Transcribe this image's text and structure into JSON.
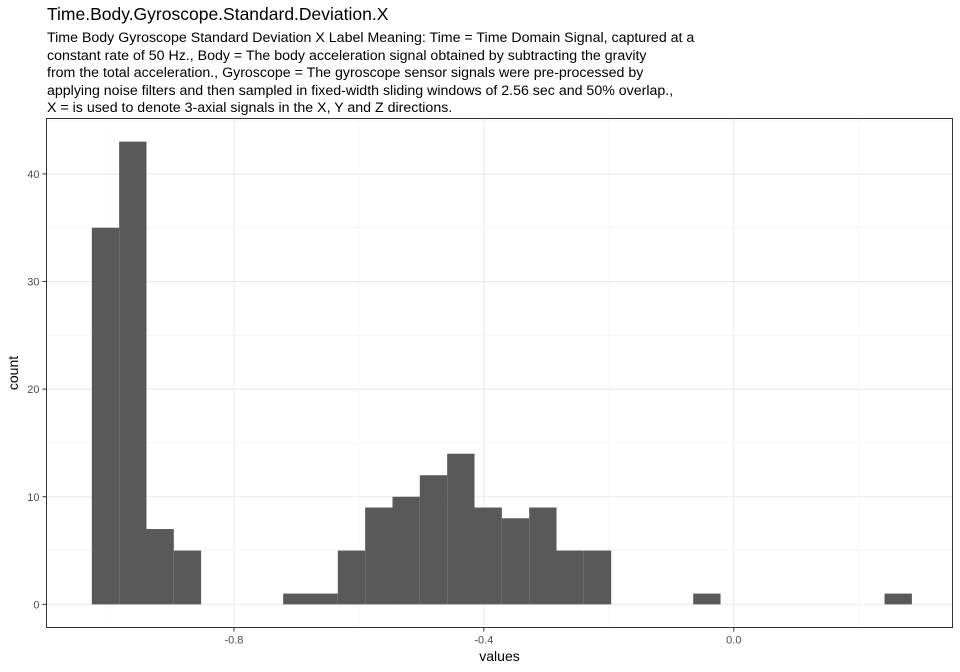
{
  "title": "Time.Body.Gyroscope.Standard.Deviation.X",
  "subtitle_lines": [
    "Time Body Gyroscope Standard Deviation X Label Meaning: Time = Time Domain Signal, captured at a",
    "constant rate of 50 Hz., Body = The body acceleration signal obtained by subtracting the gravity",
    "from the total acceleration., Gyroscope = The gyroscope sensor signals were pre-processed by",
    "applying noise filters and then sampled in fixed-width sliding windows of 2.56 sec and 50% overlap.,",
    "X = is used to denote 3-axial signals in the X, Y and Z directions."
  ],
  "chart_data": {
    "type": "bar",
    "title": "Time.Body.Gyroscope.Standard.Deviation.X",
    "xlabel": "values",
    "ylabel": "count",
    "bin_width": 0.04375,
    "bin_starts": [
      -1.0275,
      -0.98375,
      -0.94,
      -0.89625,
      -0.8525,
      -0.80875,
      -0.765,
      -0.72125,
      -0.6775,
      -0.63375,
      -0.59,
      -0.54625,
      -0.5025,
      -0.45875,
      -0.415,
      -0.37125,
      -0.3275,
      -0.28375,
      -0.24,
      -0.19625,
      -0.1525,
      -0.10875,
      -0.065,
      -0.02125,
      0.0225,
      0.06625,
      0.11,
      0.15375,
      0.1975,
      0.24125
    ],
    "values": [
      35,
      43,
      7,
      5,
      0,
      0,
      0,
      1,
      1,
      5,
      9,
      10,
      12,
      14,
      9,
      8,
      9,
      5,
      5,
      0,
      0,
      0,
      1,
      0,
      0,
      0,
      0,
      0,
      0,
      1
    ],
    "xlim": [
      -1.1,
      0.35
    ],
    "ylim": [
      -2.15,
      45.15
    ],
    "x_ticks": [
      -0.8,
      -0.4,
      0.0
    ],
    "x_tick_labels": [
      "-0.8",
      "-0.4",
      "0.0"
    ],
    "y_ticks": [
      0,
      10,
      20,
      30,
      40
    ],
    "y_tick_labels": [
      "0",
      "10",
      "20",
      "30",
      "40"
    ],
    "bar_color": "#595959",
    "grid": true,
    "legend": "none",
    "theme": "bw"
  }
}
